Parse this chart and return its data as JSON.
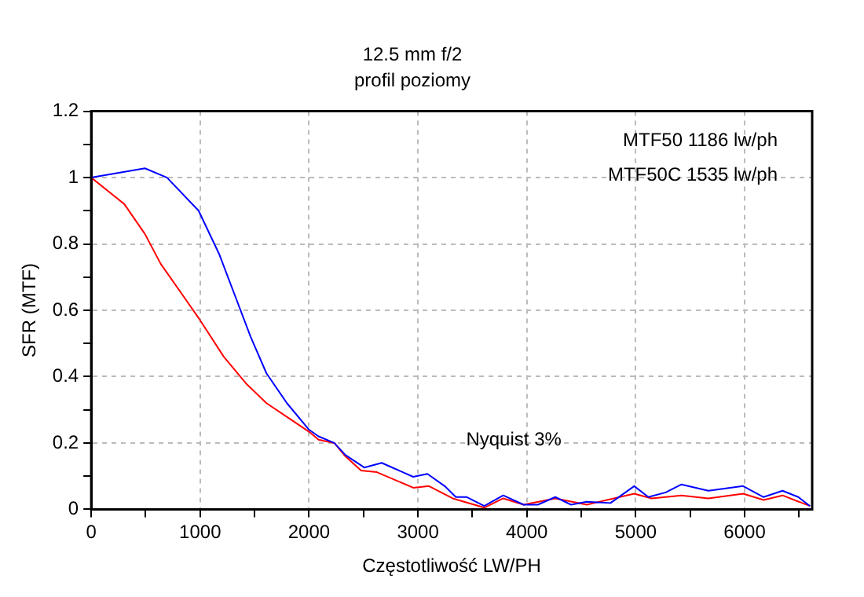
{
  "chart_data": {
    "type": "line",
    "title": "12.5 mm f/2",
    "subtitle": "profil poziomy",
    "xlabel": "Częstotliwość LW/PH",
    "ylabel": "SFR (MTF)",
    "xlim": [
      0,
      6620
    ],
    "xticks": [
      0,
      {
        "value": 500,
        "label": null
      },
      1000,
      {
        "value": 1500,
        "label": null
      },
      2000,
      {
        "value": 2500,
        "label": null
      },
      3000,
      {
        "value": 3500,
        "label": null
      },
      4000,
      {
        "value": 4500,
        "label": null
      },
      5000,
      {
        "value": 5500,
        "label": null
      },
      6000,
      {
        "value": 6500,
        "label": null
      }
    ],
    "ylim": [
      0,
      1.2
    ],
    "yticks": [
      0,
      {
        "value": 0.1,
        "label": null
      },
      0.2,
      {
        "value": 0.3,
        "label": null
      },
      0.4,
      {
        "value": 0.5,
        "label": null
      },
      0.6,
      {
        "value": 0.7,
        "label": null
      },
      0.8,
      {
        "value": 0.9,
        "label": null
      },
      1,
      {
        "value": 1.1,
        "label": null
      },
      1.2
    ],
    "grid": true,
    "legend": false,
    "marker": "none",
    "line_style": "solid",
    "annotations": [
      "MTF50 1186 lw/ph",
      "MTF50C 1535 lw/ph",
      "Nyquist 3%"
    ],
    "series": [
      {
        "color": "#0000ff",
        "x": [
          0,
          493,
          696,
          986,
          1174,
          1319,
          1464,
          1609,
          1797,
          2000,
          2087,
          2232,
          2333,
          2507,
          2667,
          2957,
          3087,
          3246,
          3348,
          3449,
          3609,
          3783,
          3971,
          4101,
          4261,
          4406,
          4551,
          4768,
          4986,
          5116,
          5275,
          5420,
          5667,
          5986,
          6174,
          6348,
          6493,
          6600
        ],
        "values": [
          1,
          1.028,
          1,
          0.9,
          0.77,
          0.645,
          0.52,
          0.41,
          0.32,
          0.24,
          0.22,
          0.2,
          0.164,
          0.126,
          0.14,
          0.098,
          0.107,
          0.07,
          0.037,
          0.037,
          0.01,
          0.042,
          0.014,
          0.014,
          0.037,
          0.014,
          0.023,
          0.019,
          0.07,
          0.037,
          0.051,
          0.075,
          0.056,
          0.07,
          0.037,
          0.056,
          0.037,
          0.01
        ]
      },
      {
        "color": "#ff0000",
        "x": [
          0,
          304,
          493,
          638,
          841,
          1000,
          1217,
          1420,
          1609,
          1855,
          2000,
          2087,
          2232,
          2333,
          2478,
          2623,
          2957,
          3101,
          3319,
          3609,
          3783,
          3971,
          4261,
          4551,
          4986,
          5145,
          5420,
          5667,
          5986,
          6174,
          6348,
          6600
        ],
        "values": [
          1,
          0.92,
          0.83,
          0.74,
          0.645,
          0.57,
          0.46,
          0.38,
          0.32,
          0.266,
          0.234,
          0.21,
          0.2,
          0.16,
          0.117,
          0.112,
          0.065,
          0.07,
          0.033,
          0.005,
          0.033,
          0.014,
          0.033,
          0.014,
          0.047,
          0.033,
          0.042,
          0.033,
          0.047,
          0.028,
          0.042,
          0.01
        ]
      }
    ]
  }
}
